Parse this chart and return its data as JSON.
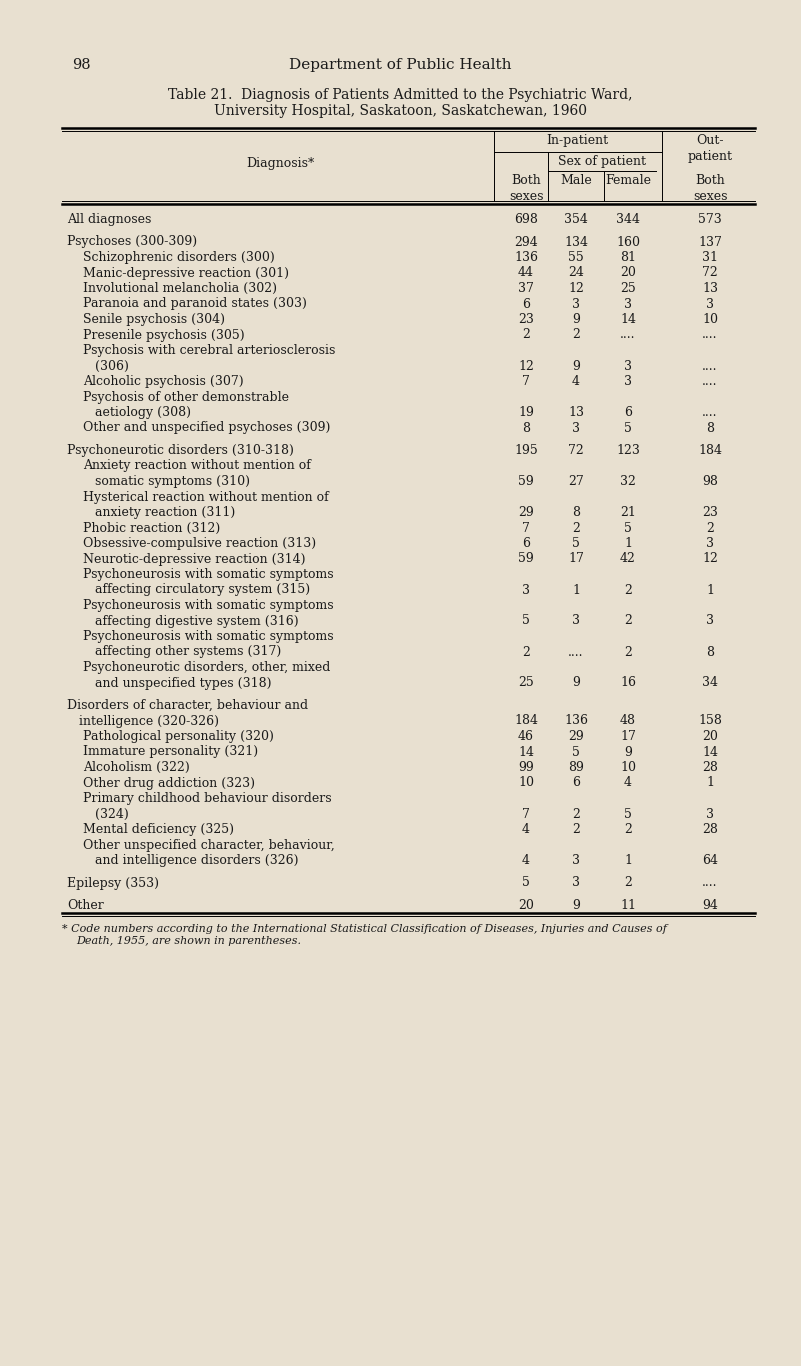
{
  "page_number": "98",
  "header": "Department of Public Health",
  "title_line1": "Table 21.  Diagnosis of Patients Admitted to the Psychiatric Ward,",
  "title_line2": "University Hospital, Saskatoon, Saskatchewan, 1960",
  "bg_color": "#e8e0d0",
  "footnote_line1": "* Code numbers according to the International Statistical Classification of Diseases, Injuries and Causes of",
  "footnote_line2": "Death, 1955, are shown in parentheses.",
  "rows": [
    {
      "label": "All diagnoses",
      "label2": "",
      "indent": 0,
      "values": [
        "698",
        "354",
        "344",
        "573"
      ],
      "gap_before": true,
      "multiline": false
    },
    {
      "label": "Psychoses (300-309)",
      "label2": "",
      "indent": 0,
      "values": [
        "294",
        "134",
        "160",
        "137"
      ],
      "gap_before": true,
      "multiline": false
    },
    {
      "label": "Schizophrenic disorders (300)",
      "label2": "",
      "indent": 1,
      "values": [
        "136",
        "55",
        "81",
        "31"
      ],
      "gap_before": false,
      "multiline": false
    },
    {
      "label": "Manic-depressive reaction (301)",
      "label2": "",
      "indent": 1,
      "values": [
        "44",
        "24",
        "20",
        "72"
      ],
      "gap_before": false,
      "multiline": false
    },
    {
      "label": "Involutional melancholia (302)",
      "label2": "",
      "indent": 1,
      "values": [
        "37",
        "12",
        "25",
        "13"
      ],
      "gap_before": false,
      "multiline": false
    },
    {
      "label": "Paranoia and paranoid states (303)",
      "label2": "",
      "indent": 1,
      "values": [
        "6",
        "3",
        "3",
        "3"
      ],
      "gap_before": false,
      "multiline": false
    },
    {
      "label": "Senile psychosis (304)",
      "label2": "",
      "indent": 1,
      "values": [
        "23",
        "9",
        "14",
        "10"
      ],
      "gap_before": false,
      "multiline": false
    },
    {
      "label": "Presenile psychosis (305)",
      "label2": "",
      "indent": 1,
      "values": [
        "2",
        "2",
        "....",
        "...."
      ],
      "gap_before": false,
      "multiline": false
    },
    {
      "label": "Psychosis with cerebral arteriosclerosis",
      "label2": "   (306)",
      "indent": 1,
      "values": [
        "12",
        "9",
        "3",
        "...."
      ],
      "gap_before": false,
      "multiline": true
    },
    {
      "label": "Alcoholic psychosis (307)",
      "label2": "",
      "indent": 1,
      "values": [
        "7",
        "4",
        "3",
        "...."
      ],
      "gap_before": false,
      "multiline": false
    },
    {
      "label": "Psychosis of other demonstrable",
      "label2": "   aetiology (308)",
      "indent": 1,
      "values": [
        "19",
        "13",
        "6",
        "...."
      ],
      "gap_before": false,
      "multiline": true
    },
    {
      "label": "Other and unspecified psychoses (309)",
      "label2": "",
      "indent": 1,
      "values": [
        "8",
        "3",
        "5",
        "8"
      ],
      "gap_before": false,
      "multiline": false
    },
    {
      "label": "Psychoneurotic disorders (310-318)",
      "label2": "",
      "indent": 0,
      "values": [
        "195",
        "72",
        "123",
        "184"
      ],
      "gap_before": true,
      "multiline": false
    },
    {
      "label": "Anxiety reaction without mention of",
      "label2": "   somatic symptoms (310)",
      "indent": 1,
      "values": [
        "59",
        "27",
        "32",
        "98"
      ],
      "gap_before": false,
      "multiline": true
    },
    {
      "label": "Hysterical reaction without mention of",
      "label2": "   anxiety reaction (311)",
      "indent": 1,
      "values": [
        "29",
        "8",
        "21",
        "23"
      ],
      "gap_before": false,
      "multiline": true
    },
    {
      "label": "Phobic reaction (312)",
      "label2": "",
      "indent": 1,
      "values": [
        "7",
        "2",
        "5",
        "2"
      ],
      "gap_before": false,
      "multiline": false
    },
    {
      "label": "Obsessive-compulsive reaction (313)",
      "label2": "",
      "indent": 1,
      "values": [
        "6",
        "5",
        "1",
        "3"
      ],
      "gap_before": false,
      "multiline": false
    },
    {
      "label": "Neurotic-depressive reaction (314)",
      "label2": "",
      "indent": 1,
      "values": [
        "59",
        "17",
        "42",
        "12"
      ],
      "gap_before": false,
      "multiline": false
    },
    {
      "label": "Psychoneurosis with somatic symptoms",
      "label2": "   affecting circulatory system (315)",
      "indent": 1,
      "values": [
        "3",
        "1",
        "2",
        "1"
      ],
      "gap_before": false,
      "multiline": true
    },
    {
      "label": "Psychoneurosis with somatic symptoms",
      "label2": "   affecting digestive system (316)",
      "indent": 1,
      "values": [
        "5",
        "3",
        "2",
        "3"
      ],
      "gap_before": false,
      "multiline": true
    },
    {
      "label": "Psychoneurosis with somatic symptoms",
      "label2": "   affecting other systems (317)",
      "indent": 1,
      "values": [
        "2",
        "....",
        "2",
        "8"
      ],
      "gap_before": false,
      "multiline": true
    },
    {
      "label": "Psychoneurotic disorders, other, mixed",
      "label2": "   and unspecified types (318)",
      "indent": 1,
      "values": [
        "25",
        "9",
        "16",
        "34"
      ],
      "gap_before": false,
      "multiline": true
    },
    {
      "label": "Disorders of character, behaviour and",
      "label2": "   intelligence (320-326)",
      "indent": 0,
      "values": [
        "184",
        "136",
        "48",
        "158"
      ],
      "gap_before": true,
      "multiline": true
    },
    {
      "label": "Pathological personality (320)",
      "label2": "",
      "indent": 1,
      "values": [
        "46",
        "29",
        "17",
        "20"
      ],
      "gap_before": false,
      "multiline": false
    },
    {
      "label": "Immature personality (321)",
      "label2": "",
      "indent": 1,
      "values": [
        "14",
        "5",
        "9",
        "14"
      ],
      "gap_before": false,
      "multiline": false
    },
    {
      "label": "Alcoholism (322)",
      "label2": "",
      "indent": 1,
      "values": [
        "99",
        "89",
        "10",
        "28"
      ],
      "gap_before": false,
      "multiline": false
    },
    {
      "label": "Other drug addiction (323)",
      "label2": "",
      "indent": 1,
      "values": [
        "10",
        "6",
        "4",
        "1"
      ],
      "gap_before": false,
      "multiline": false
    },
    {
      "label": "Primary childhood behaviour disorders",
      "label2": "   (324)",
      "indent": 1,
      "values": [
        "7",
        "2",
        "5",
        "3"
      ],
      "gap_before": false,
      "multiline": true
    },
    {
      "label": "Mental deficiency (325)",
      "label2": "",
      "indent": 1,
      "values": [
        "4",
        "2",
        "2",
        "28"
      ],
      "gap_before": false,
      "multiline": false
    },
    {
      "label": "Other unspecified character, behaviour,",
      "label2": "   and intelligence disorders (326)",
      "indent": 1,
      "values": [
        "4",
        "3",
        "1",
        "64"
      ],
      "gap_before": false,
      "multiline": true
    },
    {
      "label": "Epilepsy (353)",
      "label2": "",
      "indent": 0,
      "values": [
        "5",
        "3",
        "2",
        "...."
      ],
      "gap_before": true,
      "multiline": false
    },
    {
      "label": "Other",
      "label2": "",
      "indent": 0,
      "values": [
        "20",
        "9",
        "11",
        "94"
      ],
      "gap_before": true,
      "multiline": false
    }
  ]
}
